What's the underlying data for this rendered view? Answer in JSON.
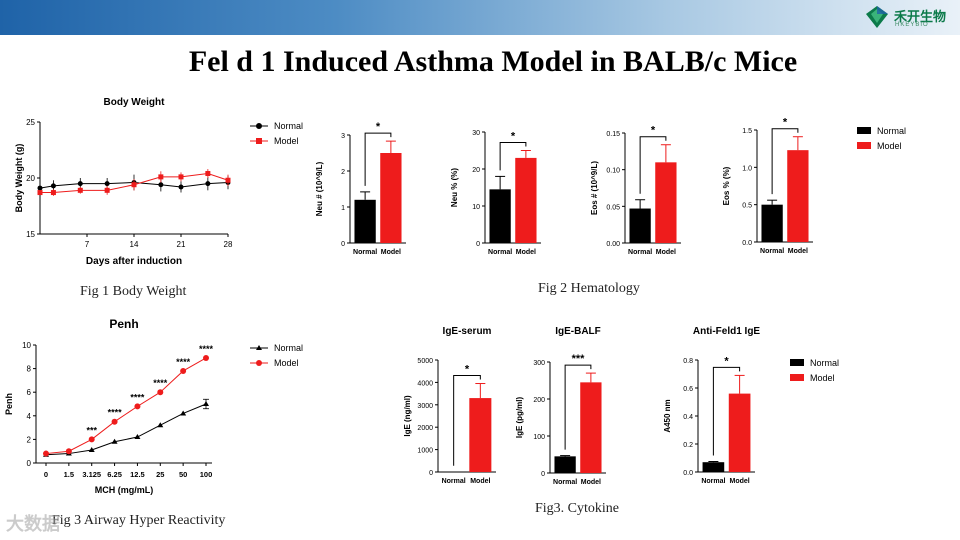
{
  "page": {
    "title": "Fel d 1 Induced Asthma Model in BALB/c Mice",
    "logo_cn": "禾开生物",
    "logo_en": "HKEYBIO",
    "watermark": "大数据",
    "captions": {
      "fig1": "Fig 1 Body Weight",
      "fig2": "Fig 2 Hematology",
      "fig3a": "Fig 3 Airway Hyper Reactivity",
      "fig3b": "Fig3. Cytokine"
    }
  },
  "colors": {
    "normal": "#000000",
    "model": "#ee1c1c",
    "brand": "#1f63a8"
  },
  "chart_data": [
    {
      "id": "body-weight",
      "type": "line",
      "title": "Body Weight",
      "xlabel": "Days after induction",
      "ylabel": "Body Weight (g)",
      "xlim": [
        0,
        28
      ],
      "ylim": [
        15,
        25
      ],
      "xticks": [
        7,
        14,
        21,
        28
      ],
      "yticks": [
        15,
        20,
        25
      ],
      "legend": "right",
      "series": [
        {
          "name": "Normal",
          "x": [
            0,
            2,
            6,
            10,
            14,
            18,
            21,
            25,
            28
          ],
          "y": [
            19.1,
            19.3,
            19.5,
            19.5,
            19.6,
            19.4,
            19.2,
            19.5,
            19.6
          ],
          "err": [
            0.3,
            0.5,
            0.5,
            0.5,
            0.7,
            0.6,
            0.5,
            0.6,
            0.6
          ]
        },
        {
          "name": "Model",
          "x": [
            0,
            2,
            6,
            10,
            14,
            18,
            21,
            25,
            28
          ],
          "y": [
            18.7,
            18.7,
            18.9,
            18.9,
            19.4,
            20.1,
            20.1,
            20.4,
            19.8
          ],
          "err": [
            0.2,
            0.3,
            0.3,
            0.4,
            0.5,
            0.5,
            0.4,
            0.4,
            0.5
          ]
        }
      ]
    },
    {
      "id": "neu-count",
      "type": "bar",
      "ylabel": "Neu # (10^9/L)",
      "categories": [
        "Normal",
        "Model"
      ],
      "values": [
        1.2,
        2.5
      ],
      "err": [
        0.22,
        0.33
      ],
      "ylim": [
        0,
        3
      ],
      "yticks": [
        0,
        1,
        2,
        3
      ],
      "significance": "*"
    },
    {
      "id": "neu-percent",
      "type": "bar",
      "ylabel": "Neu % (%)",
      "categories": [
        "Normal",
        "Model"
      ],
      "values": [
        14.5,
        23
      ],
      "err": [
        3.5,
        2
      ],
      "ylim": [
        0,
        30
      ],
      "yticks": [
        0,
        10,
        20,
        30
      ],
      "significance": "*"
    },
    {
      "id": "eos-count",
      "type": "bar",
      "ylabel": "Eos # (10^9/L)",
      "categories": [
        "Normal",
        "Model"
      ],
      "values": [
        0.047,
        0.11
      ],
      "err": [
        0.012,
        0.024
      ],
      "ylim": [
        0,
        0.15
      ],
      "yticks": [
        0,
        0.05,
        0.1,
        0.15
      ],
      "ytick_labels": [
        "0.00",
        "0.05",
        "0.10",
        "0.15"
      ],
      "significance": "*"
    },
    {
      "id": "eos-percent",
      "type": "bar",
      "ylabel": "Eos % (%)",
      "categories": [
        "Normal",
        "Model"
      ],
      "values": [
        0.5,
        1.23
      ],
      "err": [
        0.06,
        0.18
      ],
      "ylim": [
        0,
        1.5
      ],
      "yticks": [
        0,
        0.5,
        1,
        1.5
      ],
      "ytick_labels": [
        "0.0",
        "0.5",
        "1.0",
        "1.5"
      ],
      "significance": "*",
      "legend": [
        "Normal",
        "Model"
      ]
    },
    {
      "id": "penh",
      "type": "line",
      "title": "Penh",
      "xlabel": "MCH (mg/mL)",
      "ylabel": "Penh",
      "categories": [
        "0",
        "1.5",
        "3.125",
        "6.25",
        "12.5",
        "25",
        "50",
        "100"
      ],
      "ylim": [
        0,
        10
      ],
      "yticks": [
        0,
        2,
        4,
        6,
        8,
        10
      ],
      "annotations": [
        "",
        "",
        "***",
        "****",
        "****",
        "****",
        "****",
        "****"
      ],
      "legend": "right",
      "series": [
        {
          "name": "Normal",
          "values": [
            0.7,
            0.8,
            1.1,
            1.8,
            2.2,
            3.2,
            4.2,
            5.0
          ],
          "err": [
            0,
            0,
            0,
            0,
            0,
            0,
            0,
            0.4
          ]
        },
        {
          "name": "Model",
          "values": [
            0.8,
            1.0,
            2.0,
            3.5,
            4.8,
            6.0,
            7.8,
            8.9
          ],
          "err": [
            0,
            0,
            0,
            0,
            0,
            0,
            0,
            0
          ]
        }
      ]
    },
    {
      "id": "ige-serum",
      "type": "bar",
      "title": "IgE-serum",
      "ylabel": "IgE (ng/ml)",
      "categories": [
        "Normal",
        "Model"
      ],
      "values": [
        10,
        3300
      ],
      "err": [
        0,
        650
      ],
      "ylim": [
        0,
        5000
      ],
      "yticks": [
        0,
        1000,
        2000,
        3000,
        4000,
        5000
      ],
      "significance": "*"
    },
    {
      "id": "ige-balf",
      "type": "bar",
      "title": "IgE-BALF",
      "ylabel": "IgE (pg/ml)",
      "categories": [
        "Normal",
        "Model"
      ],
      "values": [
        45,
        245
      ],
      "err": [
        2,
        25
      ],
      "ylim": [
        0,
        300
      ],
      "yticks": [
        0,
        100,
        200,
        300
      ],
      "significance": "***"
    },
    {
      "id": "anti-feld1-ige",
      "type": "bar",
      "title": "Anti-Feld1 IgE",
      "ylabel": "A450 nm",
      "categories": [
        "Normal",
        "Model"
      ],
      "values": [
        0.07,
        0.56
      ],
      "err": [
        0.005,
        0.13
      ],
      "ylim": [
        0,
        0.8
      ],
      "yticks": [
        0,
        0.2,
        0.4,
        0.6,
        0.8
      ],
      "ytick_labels": [
        "0.0",
        "0.2",
        "0.4",
        "0.6",
        "0.8"
      ],
      "significance": "*",
      "legend": [
        "Normal",
        "Model"
      ]
    }
  ]
}
